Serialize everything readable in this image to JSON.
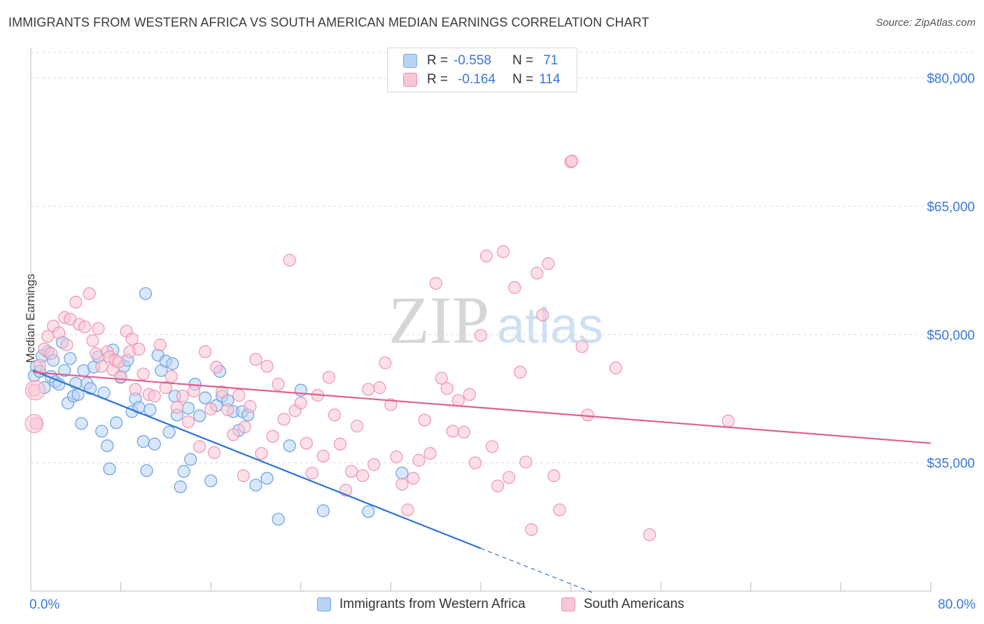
{
  "title": "IMMIGRANTS FROM WESTERN AFRICA VS SOUTH AMERICAN MEDIAN EARNINGS CORRELATION CHART",
  "source": "Source: ZipAtlas.com",
  "watermark": {
    "zip": "ZIP",
    "atlas": "atlas"
  },
  "legend": {
    "rows": [
      {
        "r_label": "R =",
        "r_value": "-0.558",
        "n_label": "N =",
        "n_value": "71",
        "fill": "#b8d4f5",
        "stroke": "#7aa9e6"
      },
      {
        "r_label": "R =",
        "r_value": "-0.164",
        "n_label": "N =",
        "n_value": "114",
        "fill": "#f9c6d6",
        "stroke": "#ee94b1"
      }
    ]
  },
  "chart_data": {
    "type": "scatter",
    "title": "IMMIGRANTS FROM WESTERN AFRICA VS SOUTH AMERICAN MEDIAN EARNINGS CORRELATION CHART",
    "xlabel": "",
    "ylabel": "Median Earnings",
    "xlim": [
      0,
      80
    ],
    "ylim": [
      20000,
      83000
    ],
    "x_tick_labels": [
      "0.0%",
      "80.0%"
    ],
    "y_ticks": [
      35000,
      50000,
      65000,
      80000
    ],
    "y_tick_labels": [
      "$35,000",
      "$50,000",
      "$65,000",
      "$80,000"
    ],
    "grid": "horizontal dashed",
    "legend_position": "bottom",
    "series": [
      {
        "name": "Immigrants from Western Africa",
        "color": "#6a9fe0",
        "fill": "#b8d4f5",
        "trend": {
          "x0": 0.2,
          "y0": 45800,
          "x1": 40,
          "y1": 25000,
          "dash_x1": 50,
          "dash_y1": 19800,
          "color": "#2d72d6"
        },
        "points": [
          [
            0.3,
            45200
          ],
          [
            0.5,
            46300
          ],
          [
            0.8,
            45700
          ],
          [
            1.0,
            47500
          ],
          [
            1.2,
            43800
          ],
          [
            1.5,
            48000
          ],
          [
            1.8,
            45100
          ],
          [
            2.0,
            47000
          ],
          [
            2.2,
            44500
          ],
          [
            2.5,
            44200
          ],
          [
            2.8,
            49100
          ],
          [
            3.0,
            45800
          ],
          [
            3.3,
            42000
          ],
          [
            3.5,
            47200
          ],
          [
            3.8,
            42800
          ],
          [
            4.0,
            44300
          ],
          [
            4.2,
            43000
          ],
          [
            4.5,
            39600
          ],
          [
            4.7,
            45800
          ],
          [
            5.0,
            44300
          ],
          [
            5.3,
            43700
          ],
          [
            5.6,
            46200
          ],
          [
            6.0,
            47400
          ],
          [
            6.3,
            38700
          ],
          [
            6.5,
            43200
          ],
          [
            6.8,
            37000
          ],
          [
            7.0,
            34300
          ],
          [
            7.3,
            48200
          ],
          [
            7.6,
            39700
          ],
          [
            8.0,
            45000
          ],
          [
            8.3,
            46300
          ],
          [
            8.6,
            47000
          ],
          [
            9.0,
            41000
          ],
          [
            9.3,
            42500
          ],
          [
            9.6,
            41500
          ],
          [
            10.0,
            37500
          ],
          [
            10.3,
            34100
          ],
          [
            10.6,
            41200
          ],
          [
            11.0,
            37200
          ],
          [
            11.3,
            47600
          ],
          [
            11.6,
            45800
          ],
          [
            12.0,
            46900
          ],
          [
            12.3,
            38600
          ],
          [
            12.6,
            46600
          ],
          [
            13.0,
            40600
          ],
          [
            13.3,
            32200
          ],
          [
            13.6,
            34000
          ],
          [
            14.0,
            41400
          ],
          [
            14.2,
            35400
          ],
          [
            14.6,
            44200
          ],
          [
            15.0,
            40500
          ],
          [
            15.5,
            42600
          ],
          [
            16.0,
            32900
          ],
          [
            16.5,
            41700
          ],
          [
            16.8,
            45700
          ],
          [
            17.0,
            42800
          ],
          [
            17.5,
            42300
          ],
          [
            18.0,
            41000
          ],
          [
            18.5,
            38800
          ],
          [
            18.8,
            41000
          ],
          [
            19.3,
            40600
          ],
          [
            20.0,
            32400
          ],
          [
            21.0,
            33200
          ],
          [
            22.0,
            28400
          ],
          [
            23.0,
            37000
          ],
          [
            24.0,
            43500
          ],
          [
            26.0,
            29400
          ],
          [
            10.2,
            54800
          ],
          [
            12.8,
            42800
          ],
          [
            30.0,
            29300
          ],
          [
            33.0,
            33800
          ]
        ]
      },
      {
        "name": "South Americans",
        "color": "#ee94b1",
        "fill": "#f9c6d6",
        "trend": {
          "x0": 0.2,
          "y0": 45600,
          "x1": 80,
          "y1": 37300,
          "color": "#e0608d"
        },
        "points": [
          [
            0.3,
            43500
          ],
          [
            0.5,
            39600
          ],
          [
            0.8,
            46400
          ],
          [
            1.2,
            48300
          ],
          [
            1.5,
            49800
          ],
          [
            1.8,
            47800
          ],
          [
            2.0,
            51000
          ],
          [
            2.5,
            50200
          ],
          [
            3.0,
            52000
          ],
          [
            3.2,
            48800
          ],
          [
            3.5,
            51800
          ],
          [
            4.0,
            53800
          ],
          [
            4.3,
            51200
          ],
          [
            4.8,
            50900
          ],
          [
            5.2,
            54800
          ],
          [
            5.5,
            49300
          ],
          [
            5.8,
            47800
          ],
          [
            6.0,
            50700
          ],
          [
            6.3,
            46300
          ],
          [
            6.8,
            48000
          ],
          [
            7.0,
            47400
          ],
          [
            7.3,
            45900
          ],
          [
            7.5,
            47000
          ],
          [
            7.8,
            46800
          ],
          [
            8.0,
            45100
          ],
          [
            8.5,
            50400
          ],
          [
            8.8,
            48000
          ],
          [
            9.0,
            49500
          ],
          [
            9.3,
            43600
          ],
          [
            9.6,
            48300
          ],
          [
            10.0,
            45400
          ],
          [
            10.5,
            43000
          ],
          [
            11.0,
            42800
          ],
          [
            11.5,
            48800
          ],
          [
            12.0,
            43800
          ],
          [
            12.5,
            45100
          ],
          [
            13.0,
            41500
          ],
          [
            13.5,
            42800
          ],
          [
            14.0,
            39800
          ],
          [
            14.5,
            43400
          ],
          [
            15.0,
            36900
          ],
          [
            15.5,
            48000
          ],
          [
            16.0,
            41300
          ],
          [
            16.5,
            46200
          ],
          [
            17.0,
            43300
          ],
          [
            17.5,
            41200
          ],
          [
            18.0,
            38300
          ],
          [
            18.5,
            42900
          ],
          [
            19.0,
            39200
          ],
          [
            19.5,
            41600
          ],
          [
            20.0,
            47100
          ],
          [
            20.5,
            36100
          ],
          [
            21.0,
            46300
          ],
          [
            21.5,
            38100
          ],
          [
            22.0,
            44200
          ],
          [
            22.5,
            40100
          ],
          [
            23.0,
            58700
          ],
          [
            23.5,
            41100
          ],
          [
            24.0,
            42000
          ],
          [
            24.5,
            37300
          ],
          [
            25.0,
            33800
          ],
          [
            25.5,
            42900
          ],
          [
            26.0,
            35800
          ],
          [
            26.5,
            45000
          ],
          [
            27.0,
            40600
          ],
          [
            27.5,
            37200
          ],
          [
            28.0,
            31800
          ],
          [
            28.5,
            34000
          ],
          [
            29.0,
            39300
          ],
          [
            29.5,
            33500
          ],
          [
            30.0,
            43600
          ],
          [
            30.5,
            34800
          ],
          [
            31.0,
            43800
          ],
          [
            31.5,
            46700
          ],
          [
            32.0,
            41800
          ],
          [
            32.5,
            35700
          ],
          [
            33.0,
            32500
          ],
          [
            33.5,
            29500
          ],
          [
            34.0,
            33200
          ],
          [
            34.5,
            35300
          ],
          [
            35.0,
            40000
          ],
          [
            35.5,
            36100
          ],
          [
            36.0,
            56000
          ],
          [
            36.5,
            44900
          ],
          [
            37.0,
            43700
          ],
          [
            37.5,
            38700
          ],
          [
            38.0,
            42300
          ],
          [
            38.5,
            38600
          ],
          [
            39.0,
            43000
          ],
          [
            39.5,
            35000
          ],
          [
            40.0,
            49900
          ],
          [
            40.5,
            59200
          ],
          [
            41.0,
            36900
          ],
          [
            41.5,
            32300
          ],
          [
            42.0,
            59700
          ],
          [
            42.5,
            33300
          ],
          [
            43.0,
            55500
          ],
          [
            43.5,
            45600
          ],
          [
            44.0,
            35100
          ],
          [
            44.5,
            27200
          ],
          [
            45.0,
            57200
          ],
          [
            45.5,
            52300
          ],
          [
            46.0,
            58300
          ],
          [
            46.5,
            33500
          ],
          [
            47.0,
            29500
          ],
          [
            48.0,
            70200
          ],
          [
            49.0,
            48600
          ],
          [
            49.5,
            40600
          ],
          [
            52.0,
            46100
          ],
          [
            55.0,
            26600
          ],
          [
            62.0,
            39900
          ],
          [
            48.1,
            70300
          ],
          [
            16.3,
            36200
          ],
          [
            18.9,
            33500
          ]
        ]
      }
    ]
  }
}
